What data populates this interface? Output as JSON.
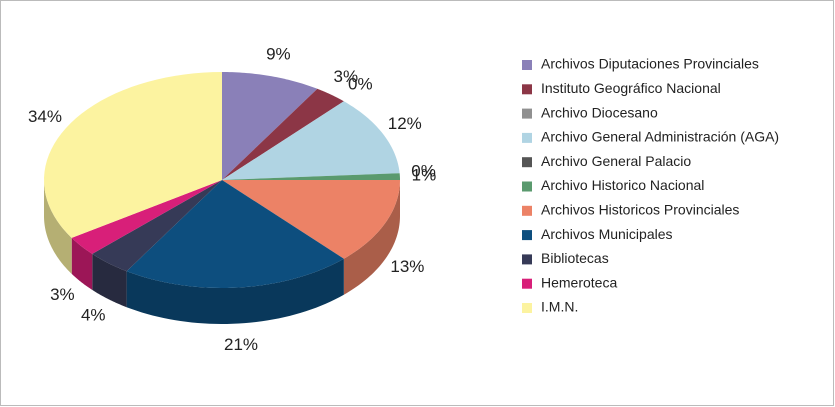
{
  "chart_data": {
    "type": "pie3d",
    "categories": [
      "Archivos Diputaciones Provinciales",
      "Instituto Geográfico Nacional",
      "Archivo Diocesano",
      "Archivo General Administración (AGA)",
      "Archivo General Palacio",
      "Archivo Historico Nacional",
      "Archivos Historicos Provinciales",
      "Archivos Municipales",
      "Bibliotecas",
      "Hemeroteca",
      "I.M.N."
    ],
    "values": [
      9,
      3,
      0,
      12,
      0,
      1,
      13,
      21,
      4,
      3,
      34
    ],
    "value_labels": [
      "9%",
      "3%",
      "0%",
      "12%",
      "0%",
      "1%",
      "13%",
      "21%",
      "4%",
      "3%",
      "34%"
    ],
    "colors": [
      "#8a80b8",
      "#8c3646",
      "#909090",
      "#b0d4e3",
      "#555555",
      "#5a9a6e",
      "#ec8266",
      "#0d4e7e",
      "#363a57",
      "#d81f79",
      "#fcf3a0"
    ],
    "legend": "right"
  }
}
